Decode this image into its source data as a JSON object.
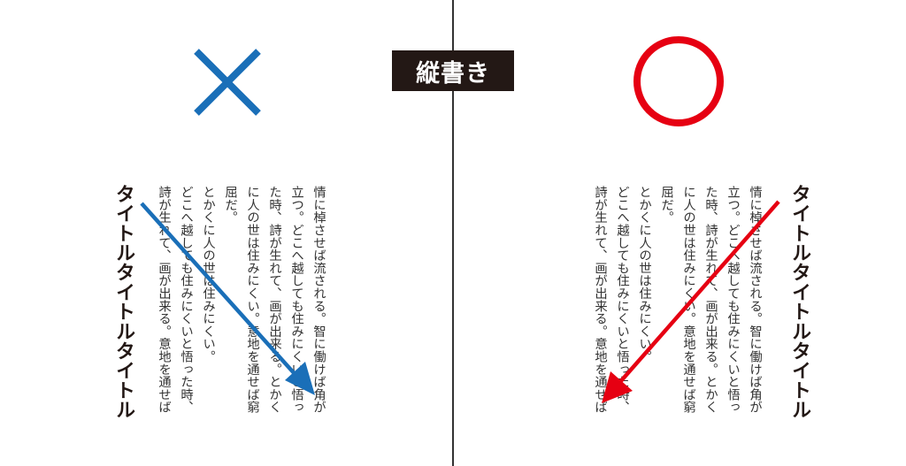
{
  "label": "縦書き",
  "colors": {
    "wrong": "#1a6fb8",
    "right": "#e60012",
    "label_bg": "#231815"
  },
  "icons": {
    "wrong": "cross-mark-icon",
    "right": "circle-mark-icon"
  },
  "title_text": "タイトルタイトルタイトル",
  "body_columns": [
    "情に棹させば流される。智に働けば角が",
    "立つ。どこへ越しても住みにくいと悟っ",
    "た時、詩が生れて、画が出来る。とかく",
    "に人の世は住みにくい。意地を通せば窮",
    "屈だ。",
    "とかくに人の世は住みにくい。",
    "どこへ越しても住みにくいと悟った時、",
    "詩が生れて、画が出来る。意地を通せば"
  ]
}
